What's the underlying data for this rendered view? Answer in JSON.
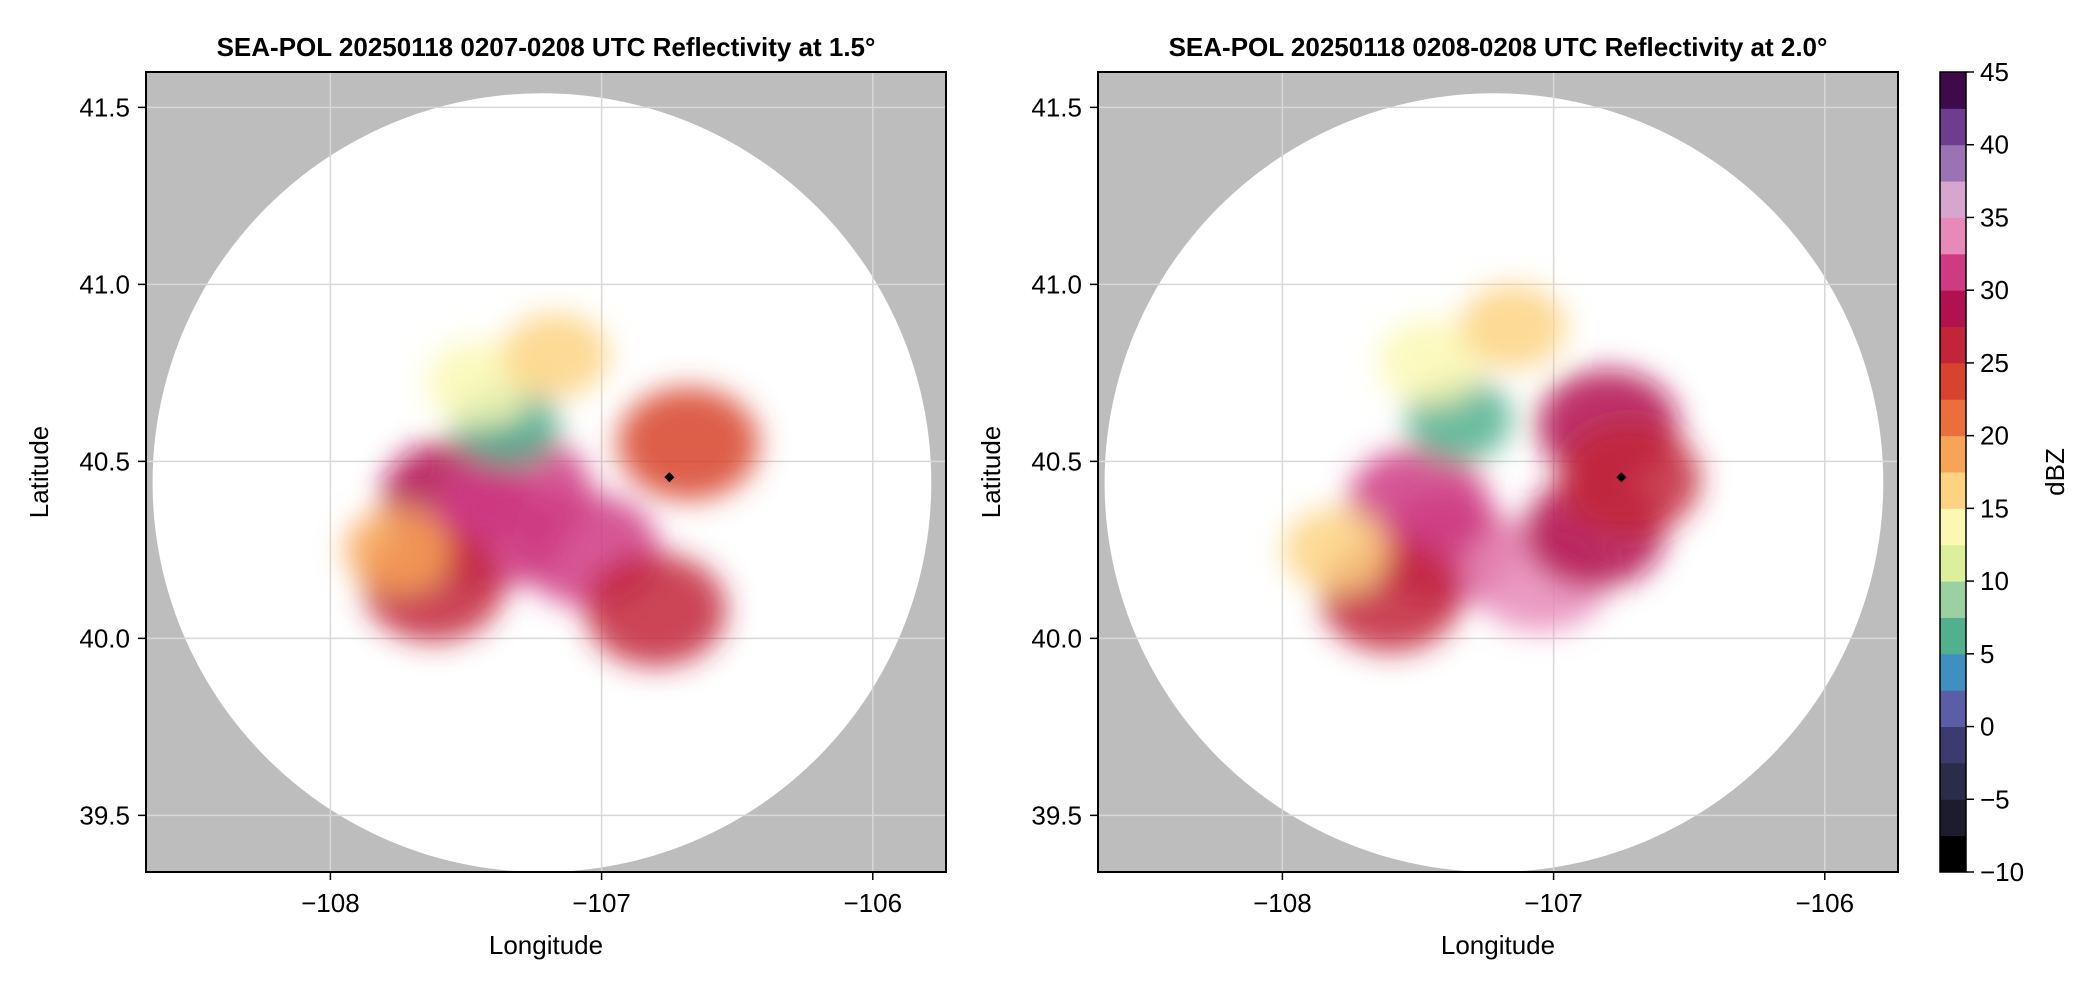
{
  "chart_data": [
    {
      "type": "heatmap",
      "title": "SEA-POL 20250118 0207-0208 UTC Reflectivity at 1.5°",
      "xlabel": "Longitude",
      "ylabel": "Latitude",
      "xticks": [
        -108,
        -107,
        -106
      ],
      "xtick_labels": [
        "−108",
        "−107",
        "−106"
      ],
      "yticks": [
        39.5,
        40.0,
        40.5,
        41.0,
        41.5
      ],
      "ytick_labels": [
        "39.5",
        "40.0",
        "40.5",
        "41.0",
        "41.5"
      ],
      "xlim": [
        -108.68,
        -105.73
      ],
      "ylim": [
        39.34,
        41.6
      ],
      "grid": true,
      "radar_center": [
        -107.22,
        40.44
      ],
      "marker": [
        -106.75,
        40.455
      ],
      "echo_lobes": [
        {
          "lon": -107.55,
          "lat": 40.4,
          "value": 29
        },
        {
          "lon": -107.4,
          "lat": 40.3,
          "value": 31
        },
        {
          "lon": -107.62,
          "lat": 40.15,
          "value": 27
        },
        {
          "lon": -107.3,
          "lat": 40.42,
          "value": 32
        },
        {
          "lon": -107.05,
          "lat": 40.25,
          "value": 30
        },
        {
          "lon": -106.8,
          "lat": 40.08,
          "value": 26
        },
        {
          "lon": -106.68,
          "lat": 40.55,
          "value": 24
        },
        {
          "lon": -107.35,
          "lat": 40.6,
          "value": 6
        },
        {
          "lon": -107.45,
          "lat": 40.72,
          "value": 14
        },
        {
          "lon": -107.75,
          "lat": 40.25,
          "value": 18
        },
        {
          "lon": -107.17,
          "lat": 40.8,
          "value": 16
        }
      ]
    },
    {
      "type": "heatmap",
      "title": "SEA-POL 20250118 0208-0208 UTC Reflectivity at 2.0°",
      "xlabel": "Longitude",
      "ylabel": "Latitude",
      "xticks": [
        -108,
        -107,
        -106
      ],
      "xtick_labels": [
        "−108",
        "−107",
        "−106"
      ],
      "yticks": [
        39.5,
        40.0,
        40.5,
        41.0,
        41.5
      ],
      "ytick_labels": [
        "39.5",
        "40.0",
        "40.5",
        "41.0",
        "41.5"
      ],
      "xlim": [
        -108.68,
        -105.73
      ],
      "ylim": [
        39.34,
        41.6
      ],
      "grid": true,
      "radar_center": [
        -107.22,
        40.44
      ],
      "marker": [
        -106.75,
        40.455
      ],
      "echo_lobes": [
        {
          "lon": -107.5,
          "lat": 40.38,
          "value": 30
        },
        {
          "lon": -107.4,
          "lat": 40.25,
          "value": 32
        },
        {
          "lon": -107.6,
          "lat": 40.12,
          "value": 27
        },
        {
          "lon": -107.05,
          "lat": 40.18,
          "value": 33
        },
        {
          "lon": -106.85,
          "lat": 40.3,
          "value": 28
        },
        {
          "lon": -106.8,
          "lat": 40.6,
          "value": 29
        },
        {
          "lon": -106.72,
          "lat": 40.45,
          "value": 27
        },
        {
          "lon": -107.35,
          "lat": 40.62,
          "value": 7
        },
        {
          "lon": -107.45,
          "lat": 40.78,
          "value": 14
        },
        {
          "lon": -107.8,
          "lat": 40.25,
          "value": 17
        },
        {
          "lon": -107.15,
          "lat": 40.88,
          "value": 15
        }
      ]
    }
  ],
  "colorbar": {
    "label": "dBZ",
    "range": [
      -10,
      45
    ],
    "ticks": [
      45,
      40,
      35,
      30,
      25,
      20,
      15,
      10,
      5,
      0,
      -5,
      -10
    ],
    "tick_labels": [
      "45",
      "40",
      "35",
      "30",
      "25",
      "20",
      "15",
      "10",
      "5",
      "0",
      "−5",
      "−10"
    ],
    "colors": [
      "#000000",
      "#1c1c2e",
      "#2b2b4a",
      "#3c3a6e",
      "#5b5ea6",
      "#3f8fc0",
      "#52b08f",
      "#9bd1a0",
      "#dcef9a",
      "#fbf8b4",
      "#fdd383",
      "#f7a456",
      "#eb6f3c",
      "#d7432c",
      "#c2243a",
      "#b1124f",
      "#cf3b82",
      "#e78ab8",
      "#d6a6cf",
      "#9b72b2",
      "#6f3d90",
      "#3e0a4a"
    ]
  },
  "colors": {
    "outside_range": "#bdbdbd",
    "inside_range": "#ffffff",
    "grid": "#d8d8d8"
  }
}
